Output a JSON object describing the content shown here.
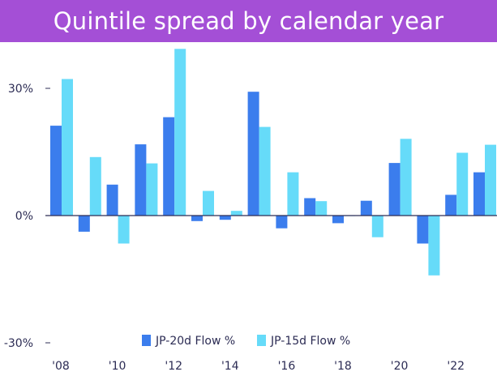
{
  "chart_data": {
    "type": "bar",
    "title": "Quintile spread by calendar year",
    "categories": [
      "2008",
      "2009",
      "2010",
      "2011",
      "2012",
      "2013",
      "2014",
      "2015",
      "2016",
      "2017",
      "2018",
      "2019",
      "2020",
      "2021",
      "2022",
      "2023"
    ],
    "x_tick_labels": [
      "'08",
      "'10",
      "'12",
      "'14",
      "'16",
      "'18",
      "'20",
      "'22"
    ],
    "y_tick_labels": [
      "30%",
      "0%",
      "-30%"
    ],
    "y_ticks": [
      30,
      0,
      -30
    ],
    "ylim": [
      -30,
      40
    ],
    "series": [
      {
        "name": "JP-20d Flow %",
        "color": "#3b7ded",
        "values": [
          21.2,
          -3.8,
          7.3,
          16.8,
          23.2,
          -1.3,
          -1.0,
          29.2,
          -3.0,
          4.1,
          -1.8,
          3.5,
          12.4,
          -6.6,
          4.9,
          10.2
        ]
      },
      {
        "name": "JP-15d Flow %",
        "color": "#66dbf9",
        "values": [
          32.2,
          13.8,
          -6.6,
          12.3,
          39.3,
          5.8,
          1.1,
          20.9,
          10.2,
          3.4,
          0,
          -5.1,
          18.1,
          -14.1,
          14.8,
          16.7
        ]
      }
    ],
    "legend_position": "bottom-center",
    "grid": false
  }
}
